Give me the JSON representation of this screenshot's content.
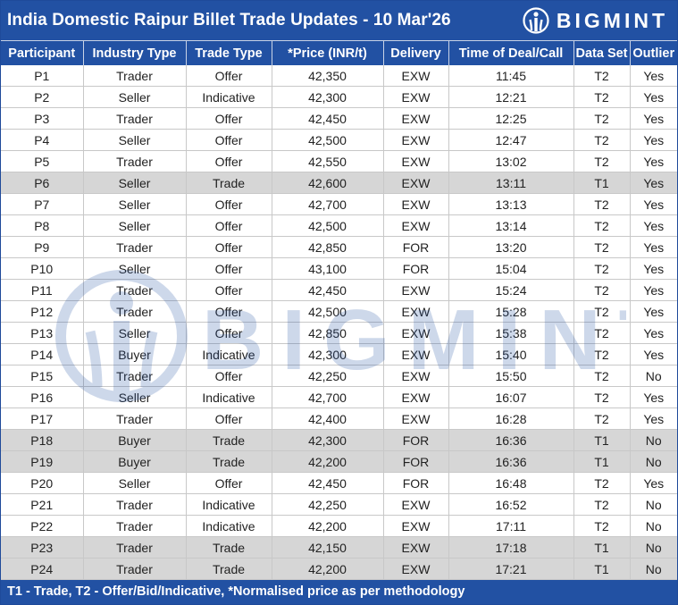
{
  "header": {
    "title": "India Domestic Raipur Billet Trade Updates - 10 Mar'26",
    "brand": "BIGMINT"
  },
  "columns": [
    "Participant",
    "Industry Type",
    "Trade Type",
    "*Price (INR/t)",
    "Delivery",
    "Time of Deal/Call",
    "Data Set",
    "Outlier"
  ],
  "rows": [
    [
      "P1",
      "Trader",
      "Offer",
      "42,350",
      "EXW",
      "11:45",
      "T2",
      "Yes"
    ],
    [
      "P2",
      "Seller",
      "Indicative",
      "42,300",
      "EXW",
      "12:21",
      "T2",
      "Yes"
    ],
    [
      "P3",
      "Trader",
      "Offer",
      "42,450",
      "EXW",
      "12:25",
      "T2",
      "Yes"
    ],
    [
      "P4",
      "Seller",
      "Offer",
      "42,500",
      "EXW",
      "12:47",
      "T2",
      "Yes"
    ],
    [
      "P5",
      "Trader",
      "Offer",
      "42,550",
      "EXW",
      "13:02",
      "T2",
      "Yes"
    ],
    [
      "P6",
      "Seller",
      "Trade",
      "42,600",
      "EXW",
      "13:11",
      "T1",
      "Yes"
    ],
    [
      "P7",
      "Seller",
      "Offer",
      "42,700",
      "EXW",
      "13:13",
      "T2",
      "Yes"
    ],
    [
      "P8",
      "Seller",
      "Offer",
      "42,500",
      "EXW",
      "13:14",
      "T2",
      "Yes"
    ],
    [
      "P9",
      "Trader",
      "Offer",
      "42,850",
      "FOR",
      "13:20",
      "T2",
      "Yes"
    ],
    [
      "P10",
      "Seller",
      "Offer",
      "43,100",
      "FOR",
      "15:04",
      "T2",
      "Yes"
    ],
    [
      "P11",
      "Trader",
      "Offer",
      "42,450",
      "EXW",
      "15:24",
      "T2",
      "Yes"
    ],
    [
      "P12",
      "Trader",
      "Offer",
      "42,500",
      "EXW",
      "15:28",
      "T2",
      "Yes"
    ],
    [
      "P13",
      "Seller",
      "Offer",
      "42,850",
      "EXW",
      "15:38",
      "T2",
      "Yes"
    ],
    [
      "P14",
      "Buyer",
      "Indicative",
      "42,300",
      "EXW",
      "15:40",
      "T2",
      "Yes"
    ],
    [
      "P15",
      "Trader",
      "Offer",
      "42,250",
      "EXW",
      "15:50",
      "T2",
      "No"
    ],
    [
      "P16",
      "Seller",
      "Indicative",
      "42,700",
      "EXW",
      "16:07",
      "T2",
      "Yes"
    ],
    [
      "P17",
      "Trader",
      "Offer",
      "42,400",
      "EXW",
      "16:28",
      "T2",
      "Yes"
    ],
    [
      "P18",
      "Buyer",
      "Trade",
      "42,300",
      "FOR",
      "16:36",
      "T1",
      "No"
    ],
    [
      "P19",
      "Buyer",
      "Trade",
      "42,200",
      "FOR",
      "16:36",
      "T1",
      "No"
    ],
    [
      "P20",
      "Seller",
      "Offer",
      "42,450",
      "FOR",
      "16:48",
      "T2",
      "Yes"
    ],
    [
      "P21",
      "Trader",
      "Indicative",
      "42,250",
      "EXW",
      "16:52",
      "T2",
      "No"
    ],
    [
      "P22",
      "Trader",
      "Indicative",
      "42,200",
      "EXW",
      "17:11",
      "T2",
      "No"
    ],
    [
      "P23",
      "Trader",
      "Trade",
      "42,150",
      "EXW",
      "17:18",
      "T1",
      "No"
    ],
    [
      "P24",
      "Trader",
      "Trade",
      "42,200",
      "EXW",
      "17:21",
      "T1",
      "No"
    ]
  ],
  "footer": {
    "note": "T1 - Trade, T2 - Offer/Bid/Indicative, *Normalised price as per methodology"
  },
  "colors": {
    "header_bg": "#2251a3",
    "trade_row_bg": "#d2d2d2"
  },
  "icons": {
    "brand_logo": "bigmint-logo-icon",
    "watermark": "bigmint-watermark-logo"
  }
}
